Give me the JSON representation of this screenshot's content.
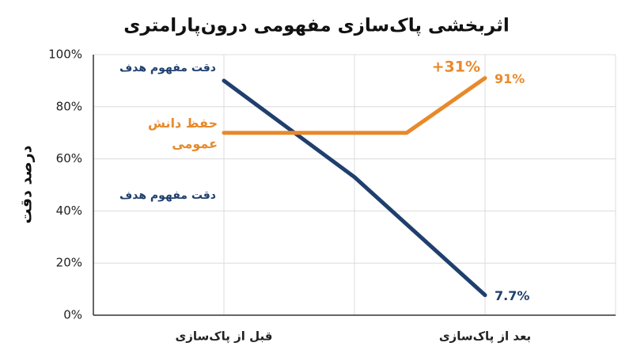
{
  "chart_data": {
    "type": "line",
    "title": "اثربخشی پاک‌سازی مفهومی درون‌پارامتری",
    "y_label": "درصد دقت",
    "xlim": [
      -0.5,
      1.5
    ],
    "xticks": [
      {
        "value": 0,
        "label": "قبل از پاک‌سازی"
      },
      {
        "value": 0.5,
        "label": null
      },
      {
        "value": 1,
        "label": "بعد از پاک‌سازی"
      }
    ],
    "ylim": [
      0,
      100
    ],
    "yticks": [
      {
        "value": 0,
        "label": "0%"
      },
      {
        "value": 20,
        "label": "20%"
      },
      {
        "value": 40,
        "label": "40%"
      },
      {
        "value": 60,
        "label": "60%"
      },
      {
        "value": 80,
        "label": "80%"
      },
      {
        "value": 100,
        "label": "100%"
      }
    ],
    "grid": true,
    "series": [
      {
        "name": "دقت مفهوم هدف",
        "color": "#1f3f6e",
        "x": [
          0,
          0.5,
          1
        ],
        "values": [
          90,
          53,
          7.7
        ],
        "value_labels": [
          null,
          null,
          "7.7%"
        ]
      },
      {
        "name": "حفظ دانش عمومی",
        "color": "#e8892b",
        "x": [
          0,
          0.7,
          1
        ],
        "values": [
          70,
          70,
          91
        ],
        "value_labels": [
          null,
          null,
          "91%"
        ]
      }
    ],
    "annotations": [
      {
        "text": "دقت مفهوم هدف",
        "color": "#1f3f6e"
      },
      {
        "text": "+31%",
        "color": "#e8892b"
      }
    ]
  }
}
